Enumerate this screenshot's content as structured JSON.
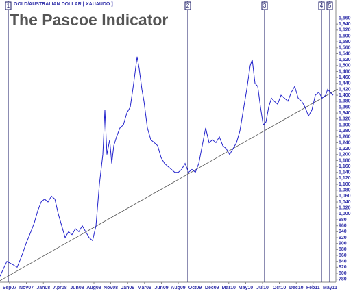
{
  "chart_data": {
    "type": "line",
    "title": "The Pascoe Indicator",
    "subtitle": "GOLD/AUSTRALIAN DOLLAR [ XAUAUDO ]",
    "x": [
      0,
      4,
      7.2,
      10,
      12.8,
      15.2,
      18,
      20,
      22,
      24,
      26,
      28,
      30,
      32,
      34,
      36,
      38,
      40,
      42,
      44,
      46,
      48,
      50,
      52,
      54,
      56,
      58,
      60,
      61.2,
      62.4,
      64,
      65.2,
      66.4,
      68,
      70,
      72,
      74,
      76,
      78,
      80,
      81.2,
      82.8,
      84,
      86,
      88,
      90,
      92,
      94,
      96,
      98,
      100,
      102,
      104,
      106,
      108,
      110,
      112,
      114,
      116,
      118,
      120,
      122,
      124,
      126,
      128,
      130,
      132,
      134,
      136,
      138,
      140,
      142,
      144,
      146,
      147.2,
      148.8,
      150.4,
      152,
      153.6,
      155.2,
      156.8,
      158.4,
      160,
      162,
      164,
      166,
      168,
      170,
      172,
      174,
      176,
      178,
      180,
      182,
      184,
      186,
      188,
      190,
      191.2,
      192.8,
      194.4
    ],
    "series": [
      {
        "color": "#2222cc",
        "values": [
          790,
          840,
          830,
          820,
          860,
          900,
          940,
          970,
          1010,
          1040,
          1050,
          1040,
          1060,
          1050,
          1000,
          960,
          920,
          940,
          930,
          950,
          940,
          960,
          940,
          920,
          910,
          960,
          1100,
          1200,
          1350,
          1200,
          1250,
          1170,
          1230,
          1260,
          1290,
          1300,
          1340,
          1360,
          1440,
          1530,
          1490,
          1420,
          1380,
          1290,
          1250,
          1240,
          1230,
          1190,
          1170,
          1160,
          1150,
          1140,
          1140,
          1150,
          1170,
          1140,
          1150,
          1140,
          1170,
          1230,
          1290,
          1240,
          1250,
          1240,
          1260,
          1230,
          1220,
          1200,
          1220,
          1240,
          1280,
          1350,
          1420,
          1500,
          1520,
          1440,
          1430,
          1360,
          1300,
          1310,
          1360,
          1390,
          1380,
          1370,
          1400,
          1390,
          1380,
          1410,
          1430,
          1390,
          1380,
          1360,
          1330,
          1350,
          1400,
          1410,
          1390,
          1400,
          1420,
          1410,
          1400
        ]
      }
    ],
    "trend_line": {
      "color": "#555555",
      "x": [
        0,
        196
      ],
      "values": [
        775,
        1417
      ]
    },
    "markers": [
      {
        "label": "1",
        "x": 4.8
      },
      {
        "label": "2",
        "x": 109.6
      },
      {
        "label": "3",
        "x": 154.4
      },
      {
        "label": "4",
        "x": 187.6
      },
      {
        "label": "5",
        "x": 192.4
      }
    ],
    "xlim": [
      0,
      196
    ],
    "xticks": [
      {
        "value": 5.6,
        "label": "Sep07"
      },
      {
        "value": 15.4,
        "label": "Nov07"
      },
      {
        "value": 25.3,
        "label": "Jan08"
      },
      {
        "value": 35.1,
        "label": "Apr08"
      },
      {
        "value": 45,
        "label": "Jun08"
      },
      {
        "value": 54.8,
        "label": "Aug08"
      },
      {
        "value": 64.6,
        "label": "Nov08"
      },
      {
        "value": 74.5,
        "label": "Jan09"
      },
      {
        "value": 84.3,
        "label": "Mar09"
      },
      {
        "value": 94.2,
        "label": "Jun09"
      },
      {
        "value": 104,
        "label": "Aug09"
      },
      {
        "value": 113.8,
        "label": "Oct09"
      },
      {
        "value": 123.7,
        "label": "Dec09"
      },
      {
        "value": 133.5,
        "label": "Mar10"
      },
      {
        "value": 143.4,
        "label": "May10"
      },
      {
        "value": 153.2,
        "label": "Jul10"
      },
      {
        "value": 163,
        "label": "Oct10"
      },
      {
        "value": 172.9,
        "label": "Dec10"
      },
      {
        "value": 182.7,
        "label": "Feb11"
      },
      {
        "value": 192.6,
        "label": "May11"
      }
    ],
    "ylim": [
      770,
      1675
    ],
    "yticks": [
      780,
      800,
      820,
      840,
      860,
      880,
      900,
      920,
      940,
      960,
      980,
      {
        "value": 1000,
        "label": "1,000"
      },
      {
        "value": 1020,
        "label": "1,020"
      },
      {
        "value": 1040,
        "label": "1,040"
      },
      {
        "value": 1060,
        "label": "1,060"
      },
      {
        "value": 1080,
        "label": "1,080"
      },
      {
        "value": 1100,
        "label": "1,100"
      },
      {
        "value": 1120,
        "label": "1,120"
      },
      {
        "value": 1140,
        "label": "1,140"
      },
      {
        "value": 1160,
        "label": "1,160"
      },
      {
        "value": 1180,
        "label": "1,180"
      },
      {
        "value": 1200,
        "label": "1,200"
      },
      {
        "value": 1220,
        "label": "1,220"
      },
      {
        "value": 1240,
        "label": "1,240"
      },
      {
        "value": 1260,
        "label": "1,260"
      },
      {
        "value": 1280,
        "label": "1,280"
      },
      {
        "value": 1300,
        "label": "1,300"
      },
      {
        "value": 1320,
        "label": "1,320"
      },
      {
        "value": 1340,
        "label": "1,340"
      },
      {
        "value": 1360,
        "label": "1,360"
      },
      {
        "value": 1380,
        "label": "1,380"
      },
      {
        "value": 1400,
        "label": "1,400"
      },
      {
        "value": 1420,
        "label": "1,420"
      },
      {
        "value": 1440,
        "label": "1,440"
      },
      {
        "value": 1460,
        "label": "1,460"
      },
      {
        "value": 1480,
        "label": "1,480"
      },
      {
        "value": 1500,
        "label": "1,500"
      },
      {
        "value": 1520,
        "label": "1,520"
      },
      {
        "value": 1540,
        "label": "1,540"
      },
      {
        "value": 1560,
        "label": "1,560"
      },
      {
        "value": 1580,
        "label": "1,580"
      },
      {
        "value": 1600,
        "label": "1,600"
      },
      {
        "value": 1620,
        "label": "1,620"
      },
      {
        "value": 1640,
        "label": "1,640"
      },
      {
        "value": 1660,
        "label": "1,660"
      }
    ]
  }
}
